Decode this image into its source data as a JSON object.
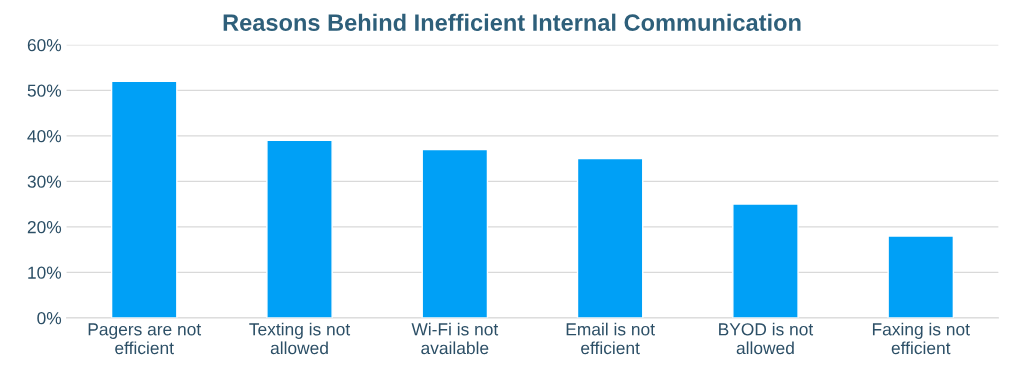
{
  "chart_data": {
    "type": "bar",
    "title": "Reasons Behind Inefficient Internal Communication",
    "categories": [
      "Pagers are not\nefficient",
      "Texting is not\nallowed",
      "Wi-Fi is not\navailable",
      "Email is not\nefficient",
      "BYOD is not\nallowed",
      "Faxing is not\nefficient"
    ],
    "values": [
      52,
      39,
      37,
      35,
      25,
      18
    ],
    "color": "#00a0f6",
    "ylim": [
      0,
      60
    ],
    "yticks": [
      {
        "value": 0,
        "label": "0%"
      },
      {
        "value": 10,
        "label": "10%"
      },
      {
        "value": 20,
        "label": "20%"
      },
      {
        "value": 30,
        "label": "30%"
      },
      {
        "value": 40,
        "label": "40%"
      },
      {
        "value": 50,
        "label": "50%"
      },
      {
        "value": 60,
        "label": "60%"
      }
    ],
    "grid": "y",
    "legend": false
  }
}
